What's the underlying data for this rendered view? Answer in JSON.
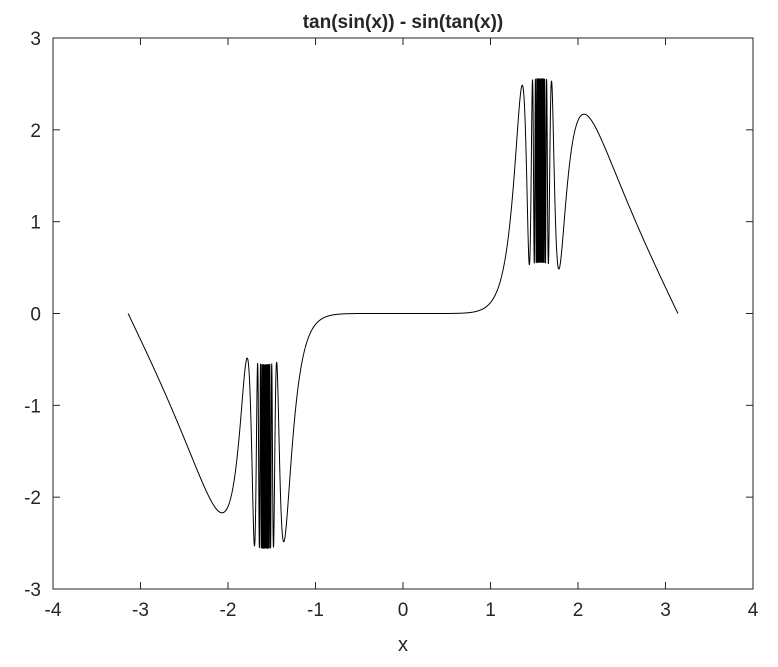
{
  "chart_data": {
    "type": "line",
    "title": "tan(sin(x)) - sin(tan(x))",
    "xlabel": "x",
    "ylabel": "",
    "xlim": [
      -4,
      4
    ],
    "ylim": [
      -3,
      3
    ],
    "x_ticks": [
      -4,
      -3,
      -2,
      -1,
      0,
      1,
      2,
      3,
      4
    ],
    "y_ticks": [
      -3,
      -2,
      -1,
      0,
      1,
      2,
      3
    ],
    "x_tick_labels": [
      "-4",
      "-3",
      "-2",
      "-1",
      "0",
      "1",
      "2",
      "3",
      "4"
    ],
    "y_tick_labels": [
      "-3",
      "-2",
      "-1",
      "0",
      "1",
      "2",
      "3"
    ],
    "grid": false,
    "legend": "none",
    "series": [
      {
        "function": "tan(sin(x)) - sin(tan(x))",
        "x_range": [
          -3.14159,
          3.14159
        ],
        "color": "#000000",
        "key_points": [
          {
            "x": -3.1416,
            "y": 0.0
          },
          {
            "x": -2.07,
            "y": -2.17
          },
          {
            "x": -1.78,
            "y": -0.49
          },
          {
            "x": -1.37,
            "y": -2.49
          },
          {
            "x": -1.0,
            "y": -0.05
          },
          {
            "x": 0.0,
            "y": 0.0
          },
          {
            "x": 1.0,
            "y": 0.05
          },
          {
            "x": 1.37,
            "y": 2.49
          },
          {
            "x": 1.78,
            "y": 0.49
          },
          {
            "x": 2.07,
            "y": 2.17
          },
          {
            "x": 3.1416,
            "y": 0.0
          }
        ]
      }
    ]
  },
  "colors": {
    "axes": "#262626",
    "line": "#000000",
    "background": "#ffffff"
  }
}
